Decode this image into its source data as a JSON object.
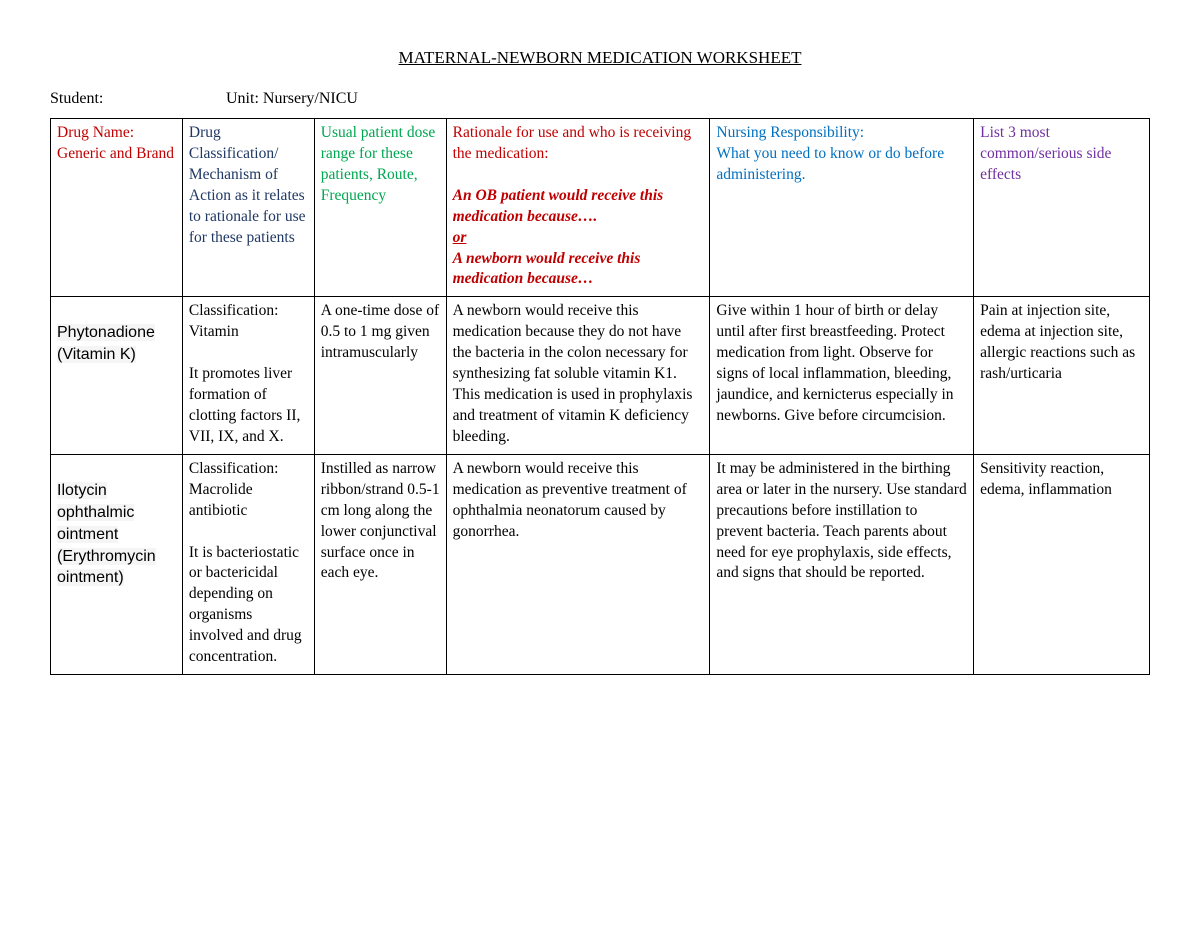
{
  "title": "MATERNAL-NEWBORN MEDICATION WORKSHEET",
  "meta": {
    "student_label": "Student:",
    "unit_label": "Unit: Nursery/NICU"
  },
  "headers": {
    "col1": "Drug Name: Generic and Brand",
    "col2": "Drug Classification/ Mechanism of Action as it relates to rationale for use for these patients",
    "col3_a": "Usual patient dose range for these patients, ",
    "col3_b": "Route, Frequency",
    "col4_main": "Rationale for use and who is receiving the medication:",
    "col4_line1": "An OB patient would receive this medication because….",
    "col4_or": "or",
    "col4_line2": "A newborn would receive this medication because…",
    "col5_a": "Nursing Responsibility:",
    "col5_b": "What you need to know or do before administering.",
    "col6": "List 3 most common/serious side effects"
  },
  "rows": [
    {
      "drug": "Phytonadione (Vitamin K)",
      "class_a": "Classification: Vitamin",
      "class_b": "It promotes liver formation of clotting factors II, VII, IX, and X.",
      "dose": "A one-time dose of 0.5 to 1 mg given intramuscularly",
      "rationale": "A newborn would receive this medication because they do not have the bacteria in the colon necessary for synthesizing fat soluble vitamin K1. This medication is used in prophylaxis and treatment of vitamin K deficiency bleeding.",
      "nursing": "Give within 1 hour of birth or delay until after first breastfeeding. Protect medication from light. Observe for signs of local inflammation, bleeding, jaundice, and kernicterus especially in newborns. Give before circumcision.",
      "side": "Pain at injection site, edema at injection site, allergic reactions such as rash/urticaria"
    },
    {
      "drug": "Ilotycin ophthalmic ointment (Erythromycin ointment)",
      "class_a": "Classification: Macrolide antibiotic",
      "class_b": "It is bacteriostatic or bactericidal depending on organisms involved and drug concentration.",
      "dose": "Instilled as narrow ribbon/strand 0.5-1 cm long along the lower conjunctival surface once in each eye.",
      "rationale": "A newborn would receive this medication as preventive treatment of ophthalmia neonatorum caused by gonorrhea.",
      "nursing": "It may be administered in the birthing area or later in the nursery. Use standard precautions before instillation to prevent bacteria. Teach parents about need for eye prophylaxis, side effects, and signs that should be reported.",
      "side": "Sensitivity reaction, edema, inflammation"
    }
  ]
}
